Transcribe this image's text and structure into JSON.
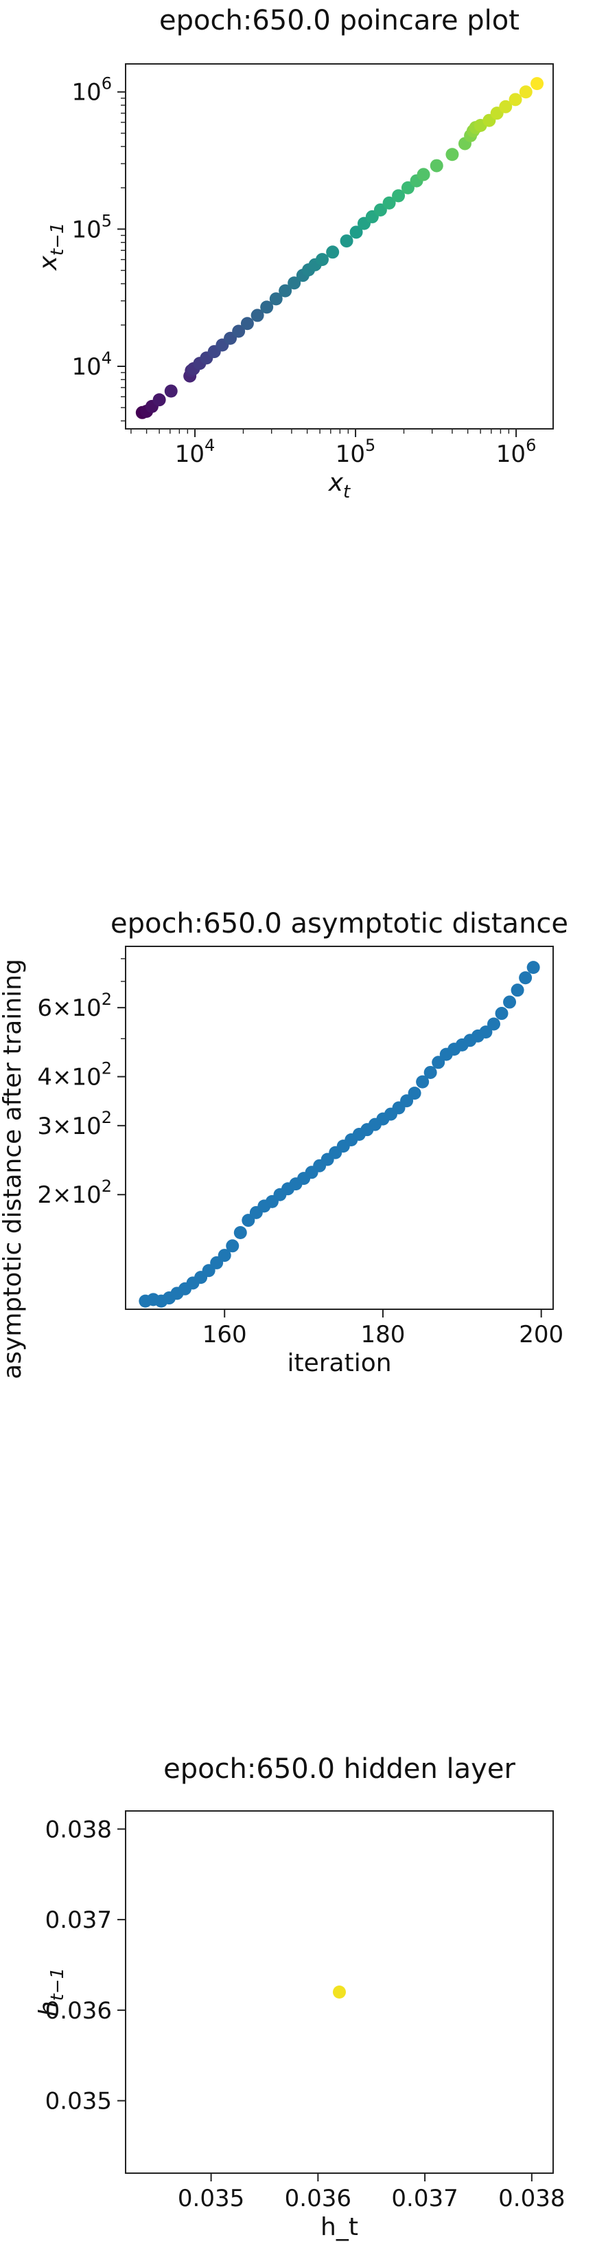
{
  "chart_data": [
    {
      "type": "scatter",
      "title": "epoch:650.0 poincare plot",
      "xlabel": "x_t",
      "ylabel": "x_{t-1}",
      "xscale": "log",
      "yscale": "log",
      "xlim": [
        3700,
        1700000
      ],
      "ylim": [
        3500,
        1600000
      ],
      "grid": false,
      "colormap": "viridis",
      "x_ticks": [
        {
          "value": 10000,
          "label": "10^4"
        },
        {
          "value": 100000,
          "label": "10^5"
        },
        {
          "value": 1000000,
          "label": "10^6"
        }
      ],
      "y_ticks": [
        {
          "value": 10000,
          "label": "10^4"
        },
        {
          "value": 100000,
          "label": "10^5"
        },
        {
          "value": 1000000,
          "label": "10^6"
        }
      ],
      "x": [
        4700,
        5000,
        5400,
        6000,
        7100,
        9300,
        9500,
        9800,
        10700,
        11800,
        13200,
        14800,
        16600,
        18700,
        21200,
        24500,
        28000,
        32000,
        36500,
        41500,
        47000,
        51000,
        56000,
        62000,
        72000,
        88000,
        101000,
        113000,
        127000,
        143000,
        162000,
        185000,
        212000,
        240000,
        265000,
        320000,
        400000,
        480000,
        520000,
        540000,
        560000,
        600000,
        680000,
        760000,
        860000,
        990000,
        1150000,
        1350000
      ],
      "y": [
        4600,
        4700,
        5100,
        5700,
        6600,
        8500,
        9300,
        9600,
        10500,
        11500,
        12800,
        14300,
        16000,
        18000,
        20500,
        23500,
        27000,
        31000,
        35500,
        40500,
        46000,
        50500,
        55000,
        60000,
        68000,
        82000,
        95000,
        110000,
        123000,
        138000,
        155000,
        175000,
        200000,
        225000,
        250000,
        290000,
        350000,
        420000,
        480000,
        520000,
        550000,
        570000,
        620000,
        700000,
        780000,
        880000,
        1000000,
        1150000
      ]
    },
    {
      "type": "scatter",
      "title": "epoch:650.0 asymptotic distance",
      "xlabel": "iteration",
      "ylabel": "asymptotic distance after training",
      "xscale": "linear",
      "yscale": "log",
      "xlim": [
        147.5,
        201.5
      ],
      "ylim": [
        102,
        860
      ],
      "grid": false,
      "color": "#1f77b4",
      "x_ticks": [
        {
          "value": 160,
          "label": "160"
        },
        {
          "value": 180,
          "label": "180"
        },
        {
          "value": 200,
          "label": "200"
        }
      ],
      "y_ticks": [
        {
          "value": 200,
          "label": "2×10^2"
        },
        {
          "value": 300,
          "label": "3×10^2"
        },
        {
          "value": 400,
          "label": "4×10^2"
        },
        {
          "value": 600,
          "label": "6×10^2"
        }
      ],
      "x": [
        150,
        151,
        152,
        153,
        154,
        155,
        156,
        157,
        158,
        159,
        160,
        161,
        162,
        163,
        164,
        165,
        166,
        167,
        168,
        169,
        170,
        171,
        172,
        173,
        174,
        175,
        176,
        177,
        178,
        179,
        180,
        181,
        182,
        183,
        184,
        185,
        186,
        187,
        188,
        189,
        190,
        191,
        192,
        193,
        194,
        195,
        196,
        197,
        198,
        199
      ],
      "y": [
        107,
        108,
        107,
        109,
        112,
        115,
        119,
        123,
        128,
        134,
        140,
        148,
        160,
        172,
        180,
        187,
        192,
        200,
        207,
        213,
        220,
        228,
        237,
        246,
        256,
        266,
        276,
        285,
        293,
        302,
        312,
        321,
        333,
        347,
        363,
        388,
        410,
        435,
        456,
        470,
        482,
        495,
        508,
        520,
        545,
        580,
        620,
        665,
        715,
        760
      ]
    },
    {
      "type": "scatter",
      "title": "epoch:650.0 hidden layer",
      "xlabel": "h_t",
      "ylabel": "h_{t-1}",
      "xscale": "linear",
      "yscale": "linear",
      "xlim": [
        0.0342,
        0.0382
      ],
      "ylim": [
        0.0342,
        0.0382
      ],
      "grid": false,
      "color": "#f2e221",
      "x_ticks": [
        {
          "value": 0.035,
          "label": "0.035"
        },
        {
          "value": 0.036,
          "label": "0.036"
        },
        {
          "value": 0.037,
          "label": "0.037"
        },
        {
          "value": 0.038,
          "label": "0.038"
        }
      ],
      "y_ticks": [
        {
          "value": 0.035,
          "label": "0.035"
        },
        {
          "value": 0.036,
          "label": "0.036"
        },
        {
          "value": 0.037,
          "label": "0.037"
        },
        {
          "value": 0.038,
          "label": "0.038"
        }
      ],
      "x": [
        0.0362
      ],
      "y": [
        0.0362
      ]
    }
  ]
}
